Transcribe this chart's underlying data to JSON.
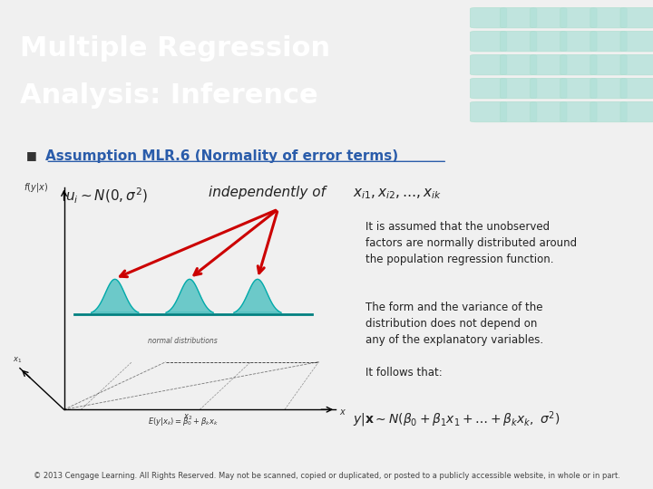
{
  "title_line1": "Multiple Regression",
  "title_line2": "Analysis: Inference",
  "header_bg": "#2ab5a0",
  "header_text_color": "#ffffff",
  "body_bg": "#f0f0f0",
  "bullet_text": "Assumption MLR.6 (Normality of error terms)",
  "bullet_color": "#2a5caa",
  "formula_left": "$u_i \\sim N(0, \\sigma^2)$",
  "formula_mid": "independently of",
  "formula_right": "$x_{i1}, x_{i2}, \\ldots, x_{ik}$",
  "text_block1": "It is assumed that the unobserved\nfactors are normally distributed around\nthe population regression function.",
  "text_block2": "The form and the variance of the\ndistribution does not depend on\nany of the explanatory variables.",
  "text_block3": "It follows that:",
  "formula_bottom": "$y|\\mathbf{x} \\sim N(\\beta_0 + \\beta_1 x_1 + \\ldots + \\beta_k x_k,\\ \\sigma^2)$",
  "footer_text": "© 2013 Cengage Learning. All Rights Reserved. May not be scanned, copied or duplicated, or posted to a publicly accessible website, in whole or in part.",
  "arrow_color": "#cc0000",
  "diagram_line_color": "#008080",
  "normal_dist_color": "#00aaaa"
}
